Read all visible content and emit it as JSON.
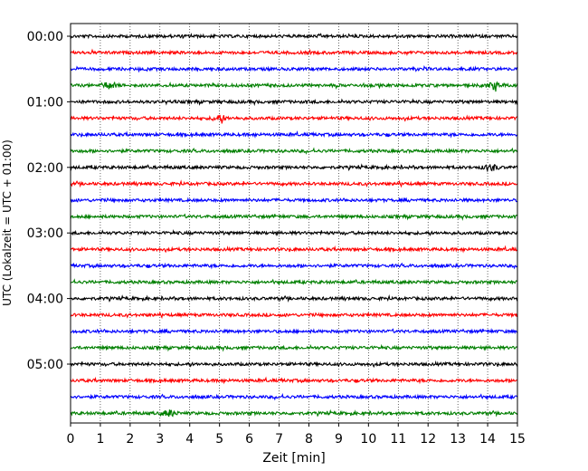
{
  "chart_data": {
    "type": "line",
    "title": "",
    "xlabel": "Zeit  [min]",
    "ylabel": "UTC (Lokalzeit = UTC + 01:00)",
    "xlim": [
      0,
      15
    ],
    "x_ticks": [
      "0",
      "1",
      "2",
      "3",
      "4",
      "5",
      "6",
      "7",
      "8",
      "9",
      "10",
      "11",
      "12",
      "13",
      "14",
      "15"
    ],
    "y_tick_labels": [
      "00:00",
      "01:00",
      "02:00",
      "03:00",
      "04:00",
      "05:00"
    ],
    "trace_count": 24,
    "traces_per_hour": 4,
    "trace_interval_minutes": 15,
    "trace_colors": [
      "#000000",
      "#ff0000",
      "#0000ff",
      "#007f00"
    ],
    "grid": "vertical dotted lines at each minute",
    "events": [
      {
        "trace": 3,
        "minute": 1.3,
        "note": "burst"
      },
      {
        "trace": 3,
        "minute": 14.2,
        "note": "burst"
      },
      {
        "trace": 5,
        "minute": 5.0,
        "note": "burst"
      },
      {
        "trace": 8,
        "minute": 14.1,
        "note": "burst"
      },
      {
        "trace": 23,
        "minute": 3.3,
        "note": "burst"
      }
    ]
  }
}
